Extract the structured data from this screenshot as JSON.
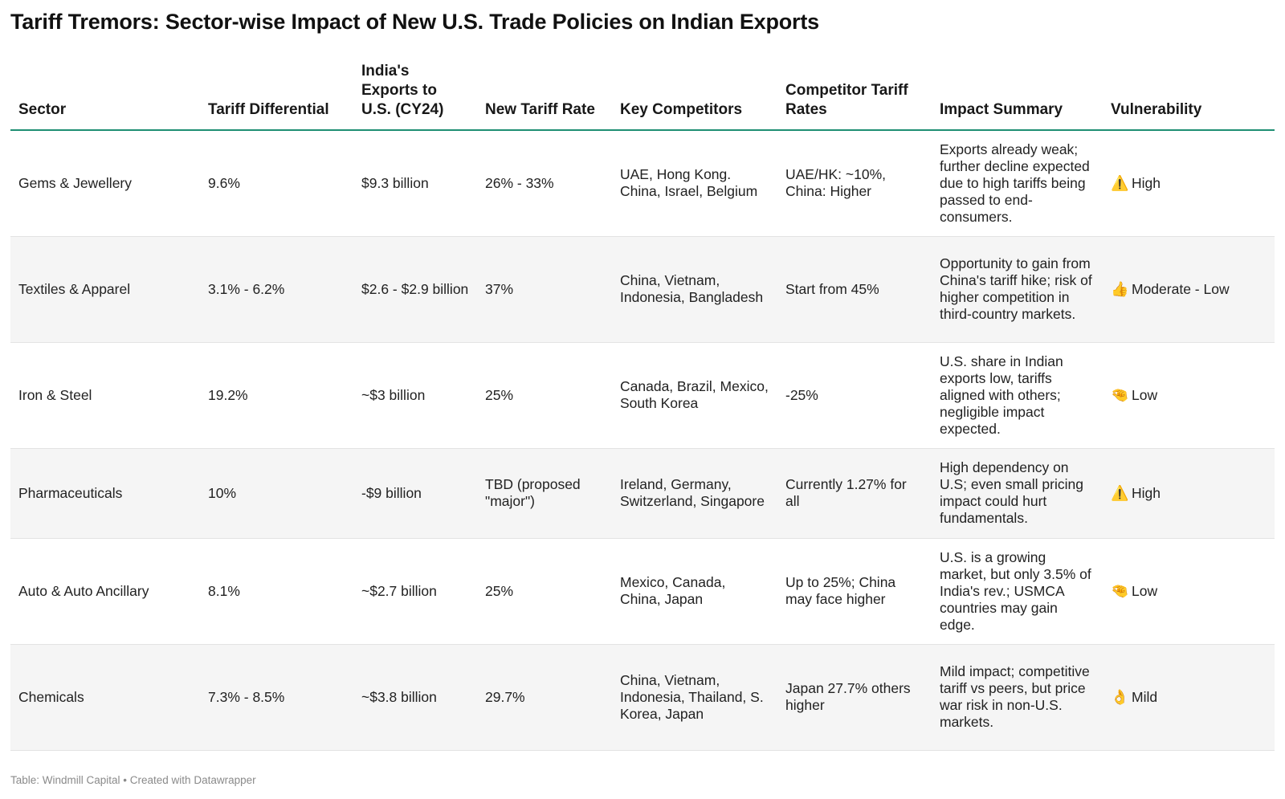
{
  "title": "Tariff Tremors: Sector-wise Impact of New U.S. Trade Policies on Indian Exports",
  "columns": {
    "sector": "Sector",
    "tariff_differential": "Tariff Differential",
    "exports": "India's Exports to U.S. (CY24)",
    "new_tariff_rate": "New Tariff Rate",
    "key_competitors": "Key Competitors",
    "competitor_tariff_rates": "Competitor Tariff Rates",
    "impact_summary": "Impact Summary",
    "vulnerability": "Vulnerability"
  },
  "rows": [
    {
      "sector": "Gems & Jewellery",
      "tariff_differential": "9.6%",
      "exports": "$9.3 billion",
      "new_tariff_rate": "26% - 33%",
      "key_competitors": "UAE, Hong Kong. China, Israel, Belgium",
      "competitor_tariff_rates": "UAE/HK: ~10%, China: Higher",
      "impact_summary": "Exports already weak; further decline expected due to high tariffs being passed to end-consumers.",
      "vulnerability_icon": "⚠️",
      "vulnerability_icon_name": "warning-icon",
      "vulnerability": "High"
    },
    {
      "sector": "Textiles & Apparel",
      "tariff_differential": "3.1% - 6.2%",
      "exports": "$2.6 - $2.9 billion",
      "new_tariff_rate": "37%",
      "key_competitors": "China, Vietnam, Indonesia, Bangladesh",
      "competitor_tariff_rates": "Start from 45%",
      "impact_summary": "Opportunity to gain from China's tariff hike; risk of higher competition in third-country markets.",
      "vulnerability_icon": "👍",
      "vulnerability_icon_name": "thumbs-up-icon",
      "vulnerability": "Moderate - Low"
    },
    {
      "sector": "Iron & Steel",
      "tariff_differential": "19.2%",
      "exports": "~$3 billion",
      "new_tariff_rate": "25%",
      "key_competitors": "Canada, Brazil, Mexico, South Korea",
      "competitor_tariff_rates": "-25%",
      "impact_summary": "U.S. share in Indian exports low, tariffs aligned with others; negligible impact expected.",
      "vulnerability_icon": "🤏",
      "vulnerability_icon_name": "pinching-hand-icon",
      "vulnerability": "Low"
    },
    {
      "sector": "Pharmaceuticals",
      "tariff_differential": "10%",
      "exports": "-$9 billion",
      "new_tariff_rate": "TBD (proposed \"major\")",
      "key_competitors": "Ireland, Germany, Switzerland, Singapore",
      "competitor_tariff_rates": "Currently 1.27% for all",
      "impact_summary": "High dependency on U.S; even small pricing impact could hurt fundamentals.",
      "vulnerability_icon": "⚠️",
      "vulnerability_icon_name": "warning-icon",
      "vulnerability": "High"
    },
    {
      "sector": "Auto & Auto Ancillary",
      "tariff_differential": "8.1%",
      "exports": "~$2.7 billion",
      "new_tariff_rate": "25%",
      "key_competitors": "Mexico, Canada, China, Japan",
      "competitor_tariff_rates": "Up to 25%; China may face higher",
      "impact_summary": "U.S. is a growing market, but only 3.5% of India's rev.; USMCA countries may gain edge.",
      "vulnerability_icon": "🤏",
      "vulnerability_icon_name": "pinching-hand-icon",
      "vulnerability": "Low"
    },
    {
      "sector": "Chemicals",
      "tariff_differential": "7.3% - 8.5%",
      "exports": "~$3.8 billion",
      "new_tariff_rate": "29.7%",
      "key_competitors": "China, Vietnam, Indonesia, Thailand, S. Korea, Japan",
      "competitor_tariff_rates": "Japan 27.7% others higher",
      "impact_summary": "Mild impact; competitive tariff vs peers, but price war risk in non-U.S. markets.",
      "vulnerability_icon": "👌",
      "vulnerability_icon_name": "ok-hand-icon",
      "vulnerability": "Mild"
    }
  ],
  "footer": "Table: Windmill Capital • Created with Datawrapper",
  "colors": {
    "header_rule": "#1e8f73",
    "stripe": "#f5f5f5",
    "footer_text": "#8a8a8a"
  }
}
